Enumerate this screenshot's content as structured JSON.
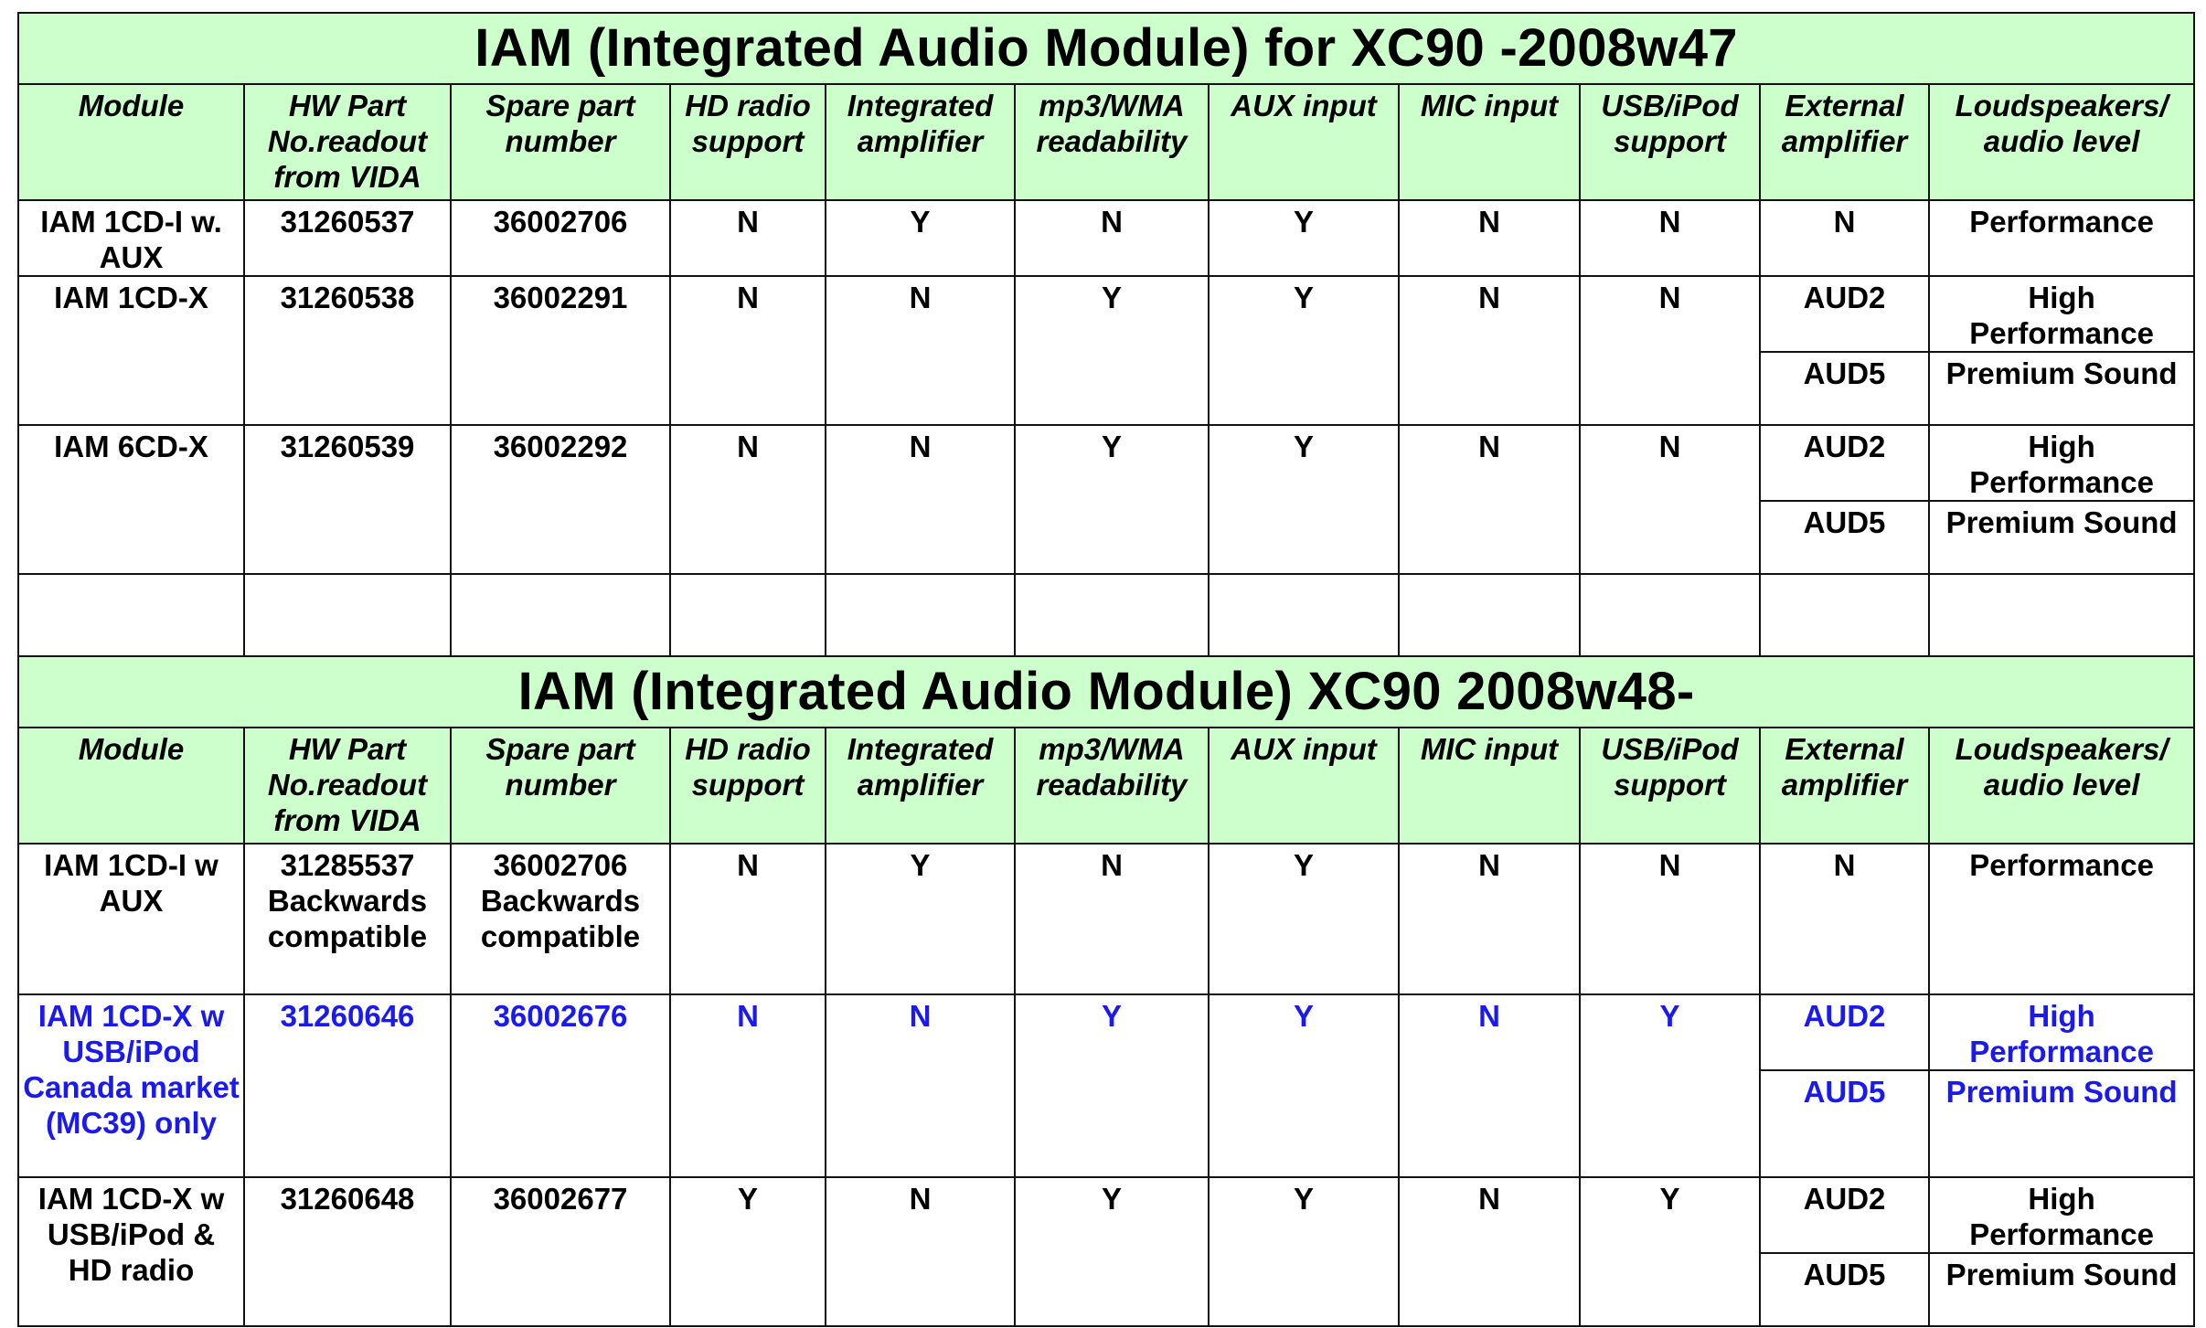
{
  "colors": {
    "header_bg": "#ccffcc",
    "highlight_text": "#1a1aee",
    "border": "#111111"
  },
  "section1": {
    "title": "IAM (Integrated Audio Module) for XC90 -2008w47",
    "headers": [
      "Module",
      "HW Part No.readout from VIDA",
      "Spare part number",
      "HD radio support",
      "Integrated amplifier",
      "mp3/WMA readability",
      "AUX input",
      "MIC input",
      "USB/iPod support",
      "External amplifier",
      "Loudspeakers/ audio level"
    ],
    "rows": [
      {
        "module": "IAM 1CD-I w. AUX",
        "hw": "31260537",
        "spare": "36002706",
        "hd": "N",
        "amp": "Y",
        "mp3": "N",
        "aux": "Y",
        "mic": "N",
        "usb": "N",
        "ext": [
          "N"
        ],
        "level": [
          "Performance"
        ]
      },
      {
        "module": "IAM 1CD-X",
        "hw": "31260538",
        "spare": "36002291",
        "hd": "N",
        "amp": "N",
        "mp3": "Y",
        "aux": "Y",
        "mic": "N",
        "usb": "N",
        "ext": [
          "AUD2",
          "AUD5"
        ],
        "level": [
          "High Performance",
          "Premium Sound"
        ]
      },
      {
        "module": "IAM 6CD-X",
        "hw": "31260539",
        "spare": "36002292",
        "hd": "N",
        "amp": "N",
        "mp3": "Y",
        "aux": "Y",
        "mic": "N",
        "usb": "N",
        "ext": [
          "AUD2",
          "AUD5"
        ],
        "level": [
          "High Performance",
          "Premium Sound"
        ]
      }
    ]
  },
  "section2": {
    "title": "IAM (Integrated Audio Module) XC90 2008w48-",
    "headers": [
      "Module",
      "HW Part No.readout from VIDA",
      "Spare part number",
      "HD radio support",
      "Integrated amplifier",
      "mp3/WMA readability",
      "AUX input",
      "MIC input",
      "USB/iPod support",
      "External amplifier",
      "Loudspeakers/ audio level"
    ],
    "rows": [
      {
        "module": "IAM 1CD-I w AUX",
        "hw": "31285537 Backwards compatible",
        "spare": "36002706 Backwards compatible",
        "hd": "N",
        "amp": "Y",
        "mp3": "N",
        "aux": "Y",
        "mic": "N",
        "usb": "N",
        "ext": [
          "N"
        ],
        "level": [
          "Performance"
        ]
      },
      {
        "module": "IAM 1CD-X w USB/iPod Canada market (MC39) only",
        "hw": "31260646",
        "spare": "36002676",
        "hd": "N",
        "amp": "N",
        "mp3": "Y",
        "aux": "Y",
        "mic": "N",
        "usb": "Y",
        "ext": [
          "AUD2",
          "AUD5"
        ],
        "level": [
          "High Performance",
          "Premium Sound"
        ]
      },
      {
        "module": "IAM 1CD-X w USB/iPod & HD radio",
        "hw": "31260648",
        "spare": "36002677",
        "hd": "Y",
        "amp": "N",
        "mp3": "Y",
        "aux": "Y",
        "mic": "N",
        "usb": "Y",
        "ext": [
          "AUD2",
          "AUD5"
        ],
        "level": [
          "High Performance",
          "Premium Sound"
        ]
      }
    ]
  }
}
